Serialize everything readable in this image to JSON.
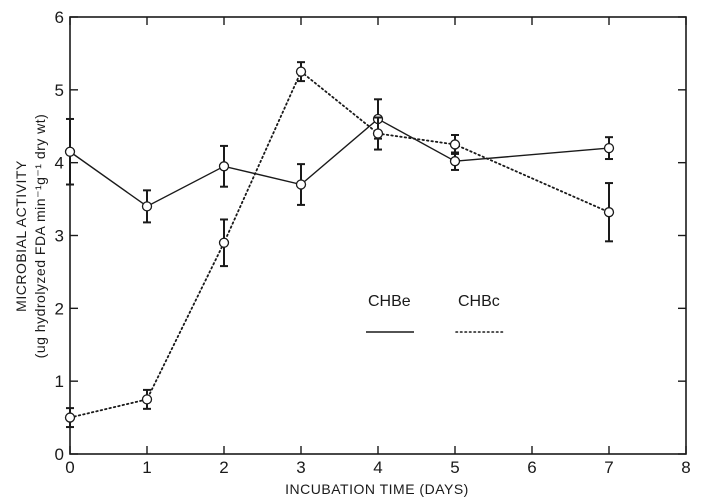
{
  "chart_data": {
    "type": "line",
    "xlabel": "INCUBATION TIME (DAYS)",
    "ylabel_line1": "MICROBIAL ACTIVITY",
    "ylabel_line2": "(ug hydrolyzed FDA min⁻¹g⁻¹ dry wt)",
    "xlim": [
      0,
      8
    ],
    "ylim": [
      0,
      6
    ],
    "xticks": [
      "0",
      "1",
      "2",
      "3",
      "4",
      "5",
      "6",
      "7",
      "8"
    ],
    "yticks": [
      "0",
      "1",
      "2",
      "3",
      "4",
      "5",
      "6"
    ],
    "grid": false,
    "legend_position": "center-right",
    "series": [
      {
        "name": "CHBe",
        "line_style": "solid",
        "x": [
          0,
          1,
          2,
          3,
          4,
          5,
          7
        ],
        "y": [
          4.15,
          3.4,
          3.95,
          3.7,
          4.6,
          4.02,
          4.2
        ],
        "err": [
          0.45,
          0.22,
          0.28,
          0.28,
          0.27,
          0.12,
          0.15
        ]
      },
      {
        "name": "CHBc",
        "line_style": "dotted",
        "x": [
          0,
          1,
          2,
          3,
          4,
          5,
          7
        ],
        "y": [
          0.5,
          0.75,
          2.9,
          5.25,
          4.4,
          4.25,
          3.32
        ],
        "err": [
          0.13,
          0.13,
          0.32,
          0.13,
          0.22,
          0.13,
          0.4
        ]
      }
    ],
    "colors": {
      "ink": "#1a1a1a"
    }
  }
}
